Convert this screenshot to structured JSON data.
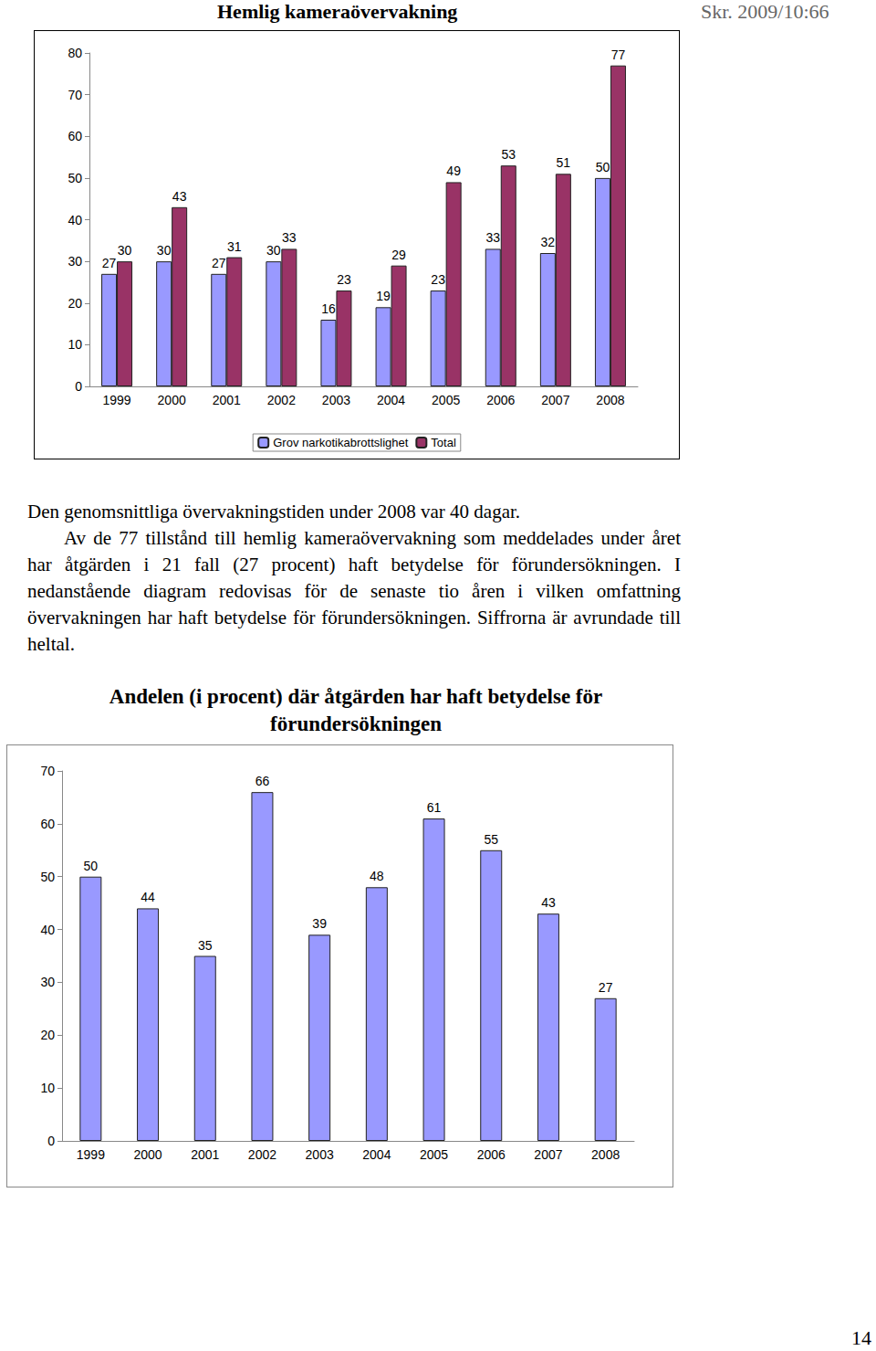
{
  "header": {
    "title": "Hemlig kameraövervakning",
    "reference": "Skr. 2009/10:66"
  },
  "chart_data": [
    {
      "type": "bar",
      "categories": [
        "1999",
        "2000",
        "2001",
        "2002",
        "2003",
        "2004",
        "2005",
        "2006",
        "2007",
        "2008"
      ],
      "series": [
        {
          "name": "Grov narkotikabrottslighet",
          "color": "#9999ff",
          "values": [
            27,
            30,
            27,
            30,
            16,
            19,
            23,
            33,
            32,
            50
          ]
        },
        {
          "name": "Total",
          "color": "#993366",
          "values": [
            30,
            43,
            31,
            33,
            23,
            29,
            49,
            53,
            51,
            77
          ]
        }
      ],
      "ylim": [
        0,
        80
      ],
      "yticks": [
        0,
        10,
        20,
        30,
        40,
        50,
        60,
        70,
        80
      ],
      "grid": false,
      "data_labels": true,
      "legend": "bottom"
    },
    {
      "type": "bar",
      "title": "Andelen (i procent) där åtgärden har haft betydelse för förundersökningen",
      "categories": [
        "1999",
        "2000",
        "2001",
        "2002",
        "2003",
        "2004",
        "2005",
        "2006",
        "2007",
        "2008"
      ],
      "values": [
        50,
        44,
        35,
        66,
        39,
        48,
        61,
        55,
        43,
        27
      ],
      "color": "#9999ff",
      "ylim": [
        0,
        70
      ],
      "yticks": [
        0,
        10,
        20,
        30,
        40,
        50,
        60,
        70
      ],
      "grid": false,
      "data_labels": true
    }
  ],
  "text": {
    "paragraphs": [
      "Den genomsnittliga övervakningstiden under 2008 var 40 dagar.",
      "Av de 77 tillstånd till hemlig kameraövervakning som meddelades under året har åtgärden i 21 fall (27 procent) haft betydelse för förundersökningen. I nedanstående diagram redovisas för de senaste tio åren i vilken omfattning övervakningen har haft betydelse för förundersökningen. Siffrorna är avrundade till heltal."
    ]
  },
  "page_number": "14"
}
